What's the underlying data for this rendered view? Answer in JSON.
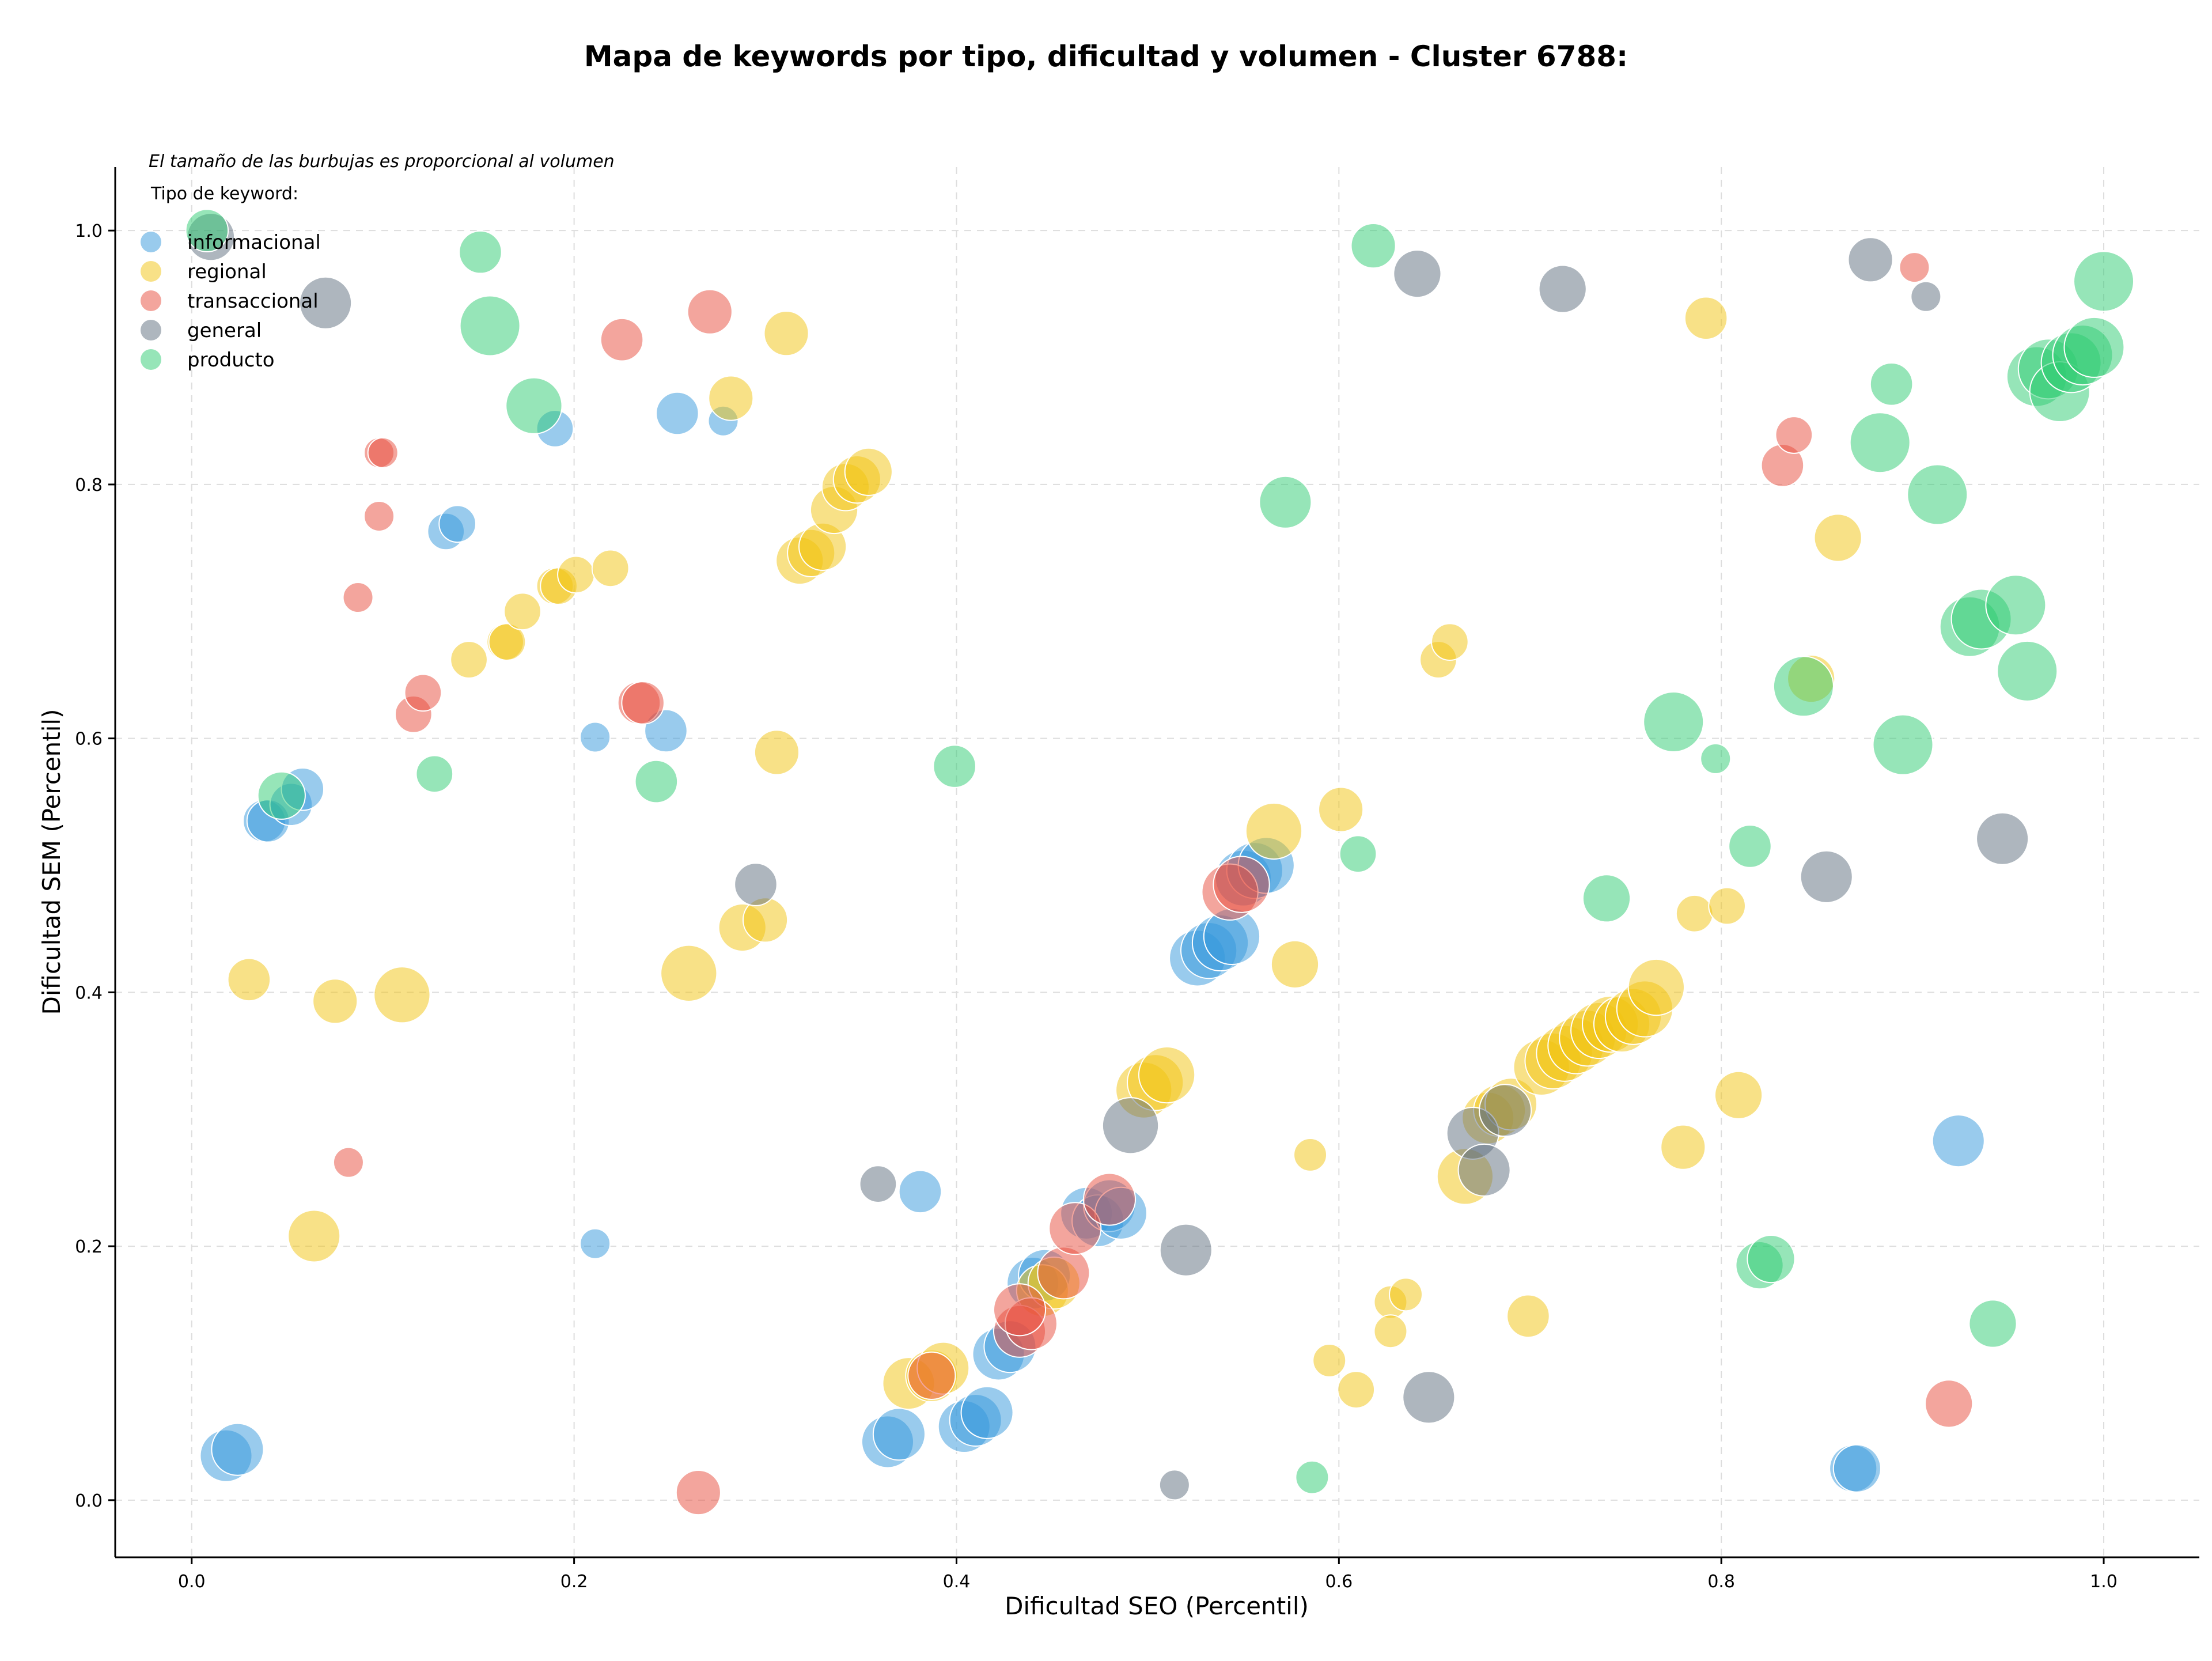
{
  "chart_data": {
    "type": "scatter",
    "title": "Mapa de keywords por tipo, dificultad y volumen - Cluster 6788:",
    "xlabel": "Dificultad SEO (Percentil)",
    "ylabel": "Dificultad SEM (Percentil)",
    "xlim": [
      -0.04,
      1.05
    ],
    "ylim": [
      -0.045,
      1.05
    ],
    "xticks": [
      "0.0",
      "0.2",
      "0.4",
      "0.6",
      "0.8",
      "1.0"
    ],
    "yticks": [
      "0.0",
      "0.2",
      "0.4",
      "0.6",
      "0.8",
      "1.0"
    ],
    "grid": true,
    "note": "El tamaño de las burbujas es proporcional al volumen",
    "legend": {
      "title": "Tipo de keyword:",
      "position": "top-left"
    },
    "series": [
      {
        "name": "informacional",
        "color": "#3498db",
        "points": [
          [
            0.018,
            0.035,
            3
          ],
          [
            0.024,
            0.04,
            3
          ],
          [
            0.038,
            0.535,
            2
          ],
          [
            0.04,
            0.535,
            2
          ],
          [
            0.052,
            0.548,
            2
          ],
          [
            0.058,
            0.56,
            2
          ],
          [
            0.133,
            0.763,
            1.5
          ],
          [
            0.139,
            0.769,
            1.5
          ],
          [
            0.19,
            0.844,
            1.5
          ],
          [
            0.211,
            0.601,
            1
          ],
          [
            0.211,
            0.202,
            1
          ],
          [
            0.248,
            0.606,
            2
          ],
          [
            0.254,
            0.856,
            2
          ],
          [
            0.278,
            0.85,
            1
          ],
          [
            0.381,
            0.243,
            2
          ],
          [
            0.364,
            0.046,
            3
          ],
          [
            0.37,
            0.052,
            3
          ],
          [
            0.404,
            0.058,
            3
          ],
          [
            0.41,
            0.063,
            3
          ],
          [
            0.416,
            0.069,
            3
          ],
          [
            0.422,
            0.115,
            3
          ],
          [
            0.428,
            0.121,
            3
          ],
          [
            0.44,
            0.171,
            3
          ],
          [
            0.446,
            0.177,
            3
          ],
          [
            0.468,
            0.226,
            3
          ],
          [
            0.474,
            0.22,
            3
          ],
          [
            0.48,
            0.232,
            3
          ],
          [
            0.486,
            0.226,
            3
          ],
          [
            0.526,
            0.427,
            3.5
          ],
          [
            0.532,
            0.433,
            3.5
          ],
          [
            0.538,
            0.439,
            3.5
          ],
          [
            0.544,
            0.444,
            3.5
          ],
          [
            0.55,
            0.49,
            3.5
          ],
          [
            0.556,
            0.496,
            3.5
          ],
          [
            0.562,
            0.5,
            3.5
          ],
          [
            0.869,
            0.025,
            2.5
          ],
          [
            0.871,
            0.025,
            2.5
          ],
          [
            0.924,
            0.283,
            3
          ]
        ]
      },
      {
        "name": "regional",
        "color": "#f1c40f",
        "points": [
          [
            0.03,
            0.41,
            2
          ],
          [
            0.064,
            0.208,
            3
          ],
          [
            0.075,
            0.393,
            2.2
          ],
          [
            0.11,
            0.398,
            3.5
          ],
          [
            0.145,
            0.662,
            1.5
          ],
          [
            0.164,
            0.676,
            1.5
          ],
          [
            0.165,
            0.676,
            1.5
          ],
          [
            0.173,
            0.7,
            1.5
          ],
          [
            0.19,
            0.72,
            1.5
          ],
          [
            0.192,
            0.72,
            1.5
          ],
          [
            0.201,
            0.729,
            1.5
          ],
          [
            0.219,
            0.734,
            1.5
          ],
          [
            0.26,
            0.415,
            3.5
          ],
          [
            0.288,
            0.451,
            2.5
          ],
          [
            0.3,
            0.457,
            2.2
          ],
          [
            0.282,
            0.868,
            2.2
          ],
          [
            0.306,
            0.589,
            2.2
          ],
          [
            0.311,
            0.919,
            2.2
          ],
          [
            0.318,
            0.74,
            2.5
          ],
          [
            0.324,
            0.746,
            2.5
          ],
          [
            0.33,
            0.751,
            2.5
          ],
          [
            0.336,
            0.78,
            2.5
          ],
          [
            0.342,
            0.798,
            2.5
          ],
          [
            0.348,
            0.804,
            2.5
          ],
          [
            0.354,
            0.81,
            2.5
          ],
          [
            0.375,
            0.092,
            3
          ],
          [
            0.387,
            0.098,
            3
          ],
          [
            0.393,
            0.104,
            3
          ],
          [
            0.445,
            0.165,
            3
          ],
          [
            0.451,
            0.171,
            3
          ],
          [
            0.498,
            0.323,
            3.5
          ],
          [
            0.504,
            0.329,
            3.5
          ],
          [
            0.51,
            0.335,
            3.5
          ],
          [
            0.566,
            0.527,
            3.5
          ],
          [
            0.577,
            0.422,
            2.5
          ],
          [
            0.585,
            0.272,
            1.2
          ],
          [
            0.595,
            0.11,
            1.2
          ],
          [
            0.601,
            0.544,
            2.2
          ],
          [
            0.609,
            0.087,
            1.5
          ],
          [
            0.627,
            0.156,
            1.2
          ],
          [
            0.627,
            0.133,
            1.2
          ],
          [
            0.635,
            0.162,
            1.2
          ],
          [
            0.652,
            0.662,
            1.5
          ],
          [
            0.658,
            0.676,
            1.5
          ],
          [
            0.666,
            0.255,
            3.5
          ],
          [
            0.678,
            0.301,
            3
          ],
          [
            0.684,
            0.307,
            3
          ],
          [
            0.69,
            0.312,
            3
          ],
          [
            0.699,
            0.145,
            2
          ],
          [
            0.706,
            0.341,
            3.5
          ],
          [
            0.712,
            0.346,
            3.5
          ],
          [
            0.718,
            0.352,
            3.5
          ],
          [
            0.724,
            0.358,
            3.5
          ],
          [
            0.73,
            0.364,
            3.5
          ],
          [
            0.736,
            0.37,
            3.5
          ],
          [
            0.742,
            0.375,
            3.5
          ],
          [
            0.748,
            0.375,
            3.5
          ],
          [
            0.754,
            0.381,
            3.5
          ],
          [
            0.76,
            0.387,
            3.5
          ],
          [
            0.766,
            0.404,
            3.5
          ],
          [
            0.78,
            0.278,
            2.2
          ],
          [
            0.786,
            0.462,
            1.5
          ],
          [
            0.792,
            0.931,
            2
          ],
          [
            0.803,
            0.468,
            1.5
          ],
          [
            0.809,
            0.319,
            2.5
          ],
          [
            0.847,
            0.647,
            2.5
          ],
          [
            0.861,
            0.758,
            2.5
          ]
        ]
      },
      {
        "name": "transaccional",
        "color": "#e74c3c",
        "points": [
          [
            0.082,
            0.266,
            1
          ],
          [
            0.087,
            0.711,
            1
          ],
          [
            0.098,
            0.775,
            1
          ],
          [
            0.098,
            0.825,
            1
          ],
          [
            0.1,
            0.825,
            1
          ],
          [
            0.116,
            0.619,
            1.5
          ],
          [
            0.121,
            0.636,
            1.5
          ],
          [
            0.225,
            0.914,
            2
          ],
          [
            0.234,
            0.628,
            2
          ],
          [
            0.236,
            0.628,
            2
          ],
          [
            0.265,
            0.006,
            2.2
          ],
          [
            0.271,
            0.936,
            2.2
          ],
          [
            0.387,
            0.098,
            2.5
          ],
          [
            0.433,
            0.133,
            3
          ],
          [
            0.439,
            0.139,
            3
          ],
          [
            0.433,
            0.15,
            3
          ],
          [
            0.456,
            0.179,
            3
          ],
          [
            0.462,
            0.214,
            3
          ],
          [
            0.48,
            0.237,
            3
          ],
          [
            0.543,
            0.479,
            3.5
          ],
          [
            0.549,
            0.485,
            3.5
          ],
          [
            0.832,
            0.815,
            2
          ],
          [
            0.838,
            0.839,
            1.5
          ],
          [
            0.901,
            0.971,
            1
          ],
          [
            0.919,
            0.076,
            2.5
          ]
        ]
      },
      {
        "name": "general",
        "color": "#5d6d7e",
        "points": [
          [
            0.01,
            0.995,
            2.5
          ],
          [
            0.07,
            0.943,
            3
          ],
          [
            0.295,
            0.485,
            2
          ],
          [
            0.359,
            0.249,
            1.5
          ],
          [
            0.491,
            0.295,
            3.5
          ],
          [
            0.514,
            0.012,
            1
          ],
          [
            0.52,
            0.197,
            3
          ],
          [
            0.641,
            0.966,
            2.5
          ],
          [
            0.647,
            0.081,
            3
          ],
          [
            0.67,
            0.289,
            3
          ],
          [
            0.676,
            0.26,
            3
          ],
          [
            0.687,
            0.307,
            3
          ],
          [
            0.717,
            0.954,
            2.5
          ],
          [
            0.855,
            0.491,
            3
          ],
          [
            0.878,
            0.977,
            2.2
          ],
          [
            0.907,
            0.948,
            1
          ],
          [
            0.947,
            0.521,
            3
          ]
        ]
      },
      {
        "name": "producto",
        "color": "#2ecc71",
        "points": [
          [
            0.008,
            1.0,
            2
          ],
          [
            0.047,
            0.555,
            2.5
          ],
          [
            0.127,
            0.572,
            1.5
          ],
          [
            0.151,
            0.983,
            2
          ],
          [
            0.156,
            0.925,
            4
          ],
          [
            0.179,
            0.862,
            3.5
          ],
          [
            0.243,
            0.566,
            2
          ],
          [
            0.399,
            0.578,
            2
          ],
          [
            0.572,
            0.786,
            3
          ],
          [
            0.586,
            0.018,
            1.2
          ],
          [
            0.61,
            0.509,
            1.5
          ],
          [
            0.618,
            0.988,
            2.2
          ],
          [
            0.74,
            0.474,
            2.5
          ],
          [
            0.775,
            0.613,
            4
          ],
          [
            0.797,
            0.584,
            1
          ],
          [
            0.815,
            0.515,
            2
          ],
          [
            0.82,
            0.185,
            2.5
          ],
          [
            0.826,
            0.19,
            2.5
          ],
          [
            0.843,
            0.641,
            4
          ],
          [
            0.883,
            0.833,
            4
          ],
          [
            0.889,
            0.879,
            2
          ],
          [
            0.895,
            0.595,
            4
          ],
          [
            0.913,
            0.792,
            4
          ],
          [
            0.93,
            0.688,
            4
          ],
          [
            0.936,
            0.694,
            4
          ],
          [
            0.942,
            0.139,
            2.5
          ],
          [
            0.954,
            0.705,
            4
          ],
          [
            0.96,
            0.653,
            4
          ],
          [
            0.965,
            0.885,
            4
          ],
          [
            0.971,
            0.891,
            4
          ],
          [
            0.977,
            0.873,
            4
          ],
          [
            0.983,
            0.896,
            4
          ],
          [
            0.989,
            0.902,
            4
          ],
          [
            0.995,
            0.908,
            4
          ],
          [
            1.0,
            0.96,
            4
          ]
        ]
      }
    ]
  }
}
